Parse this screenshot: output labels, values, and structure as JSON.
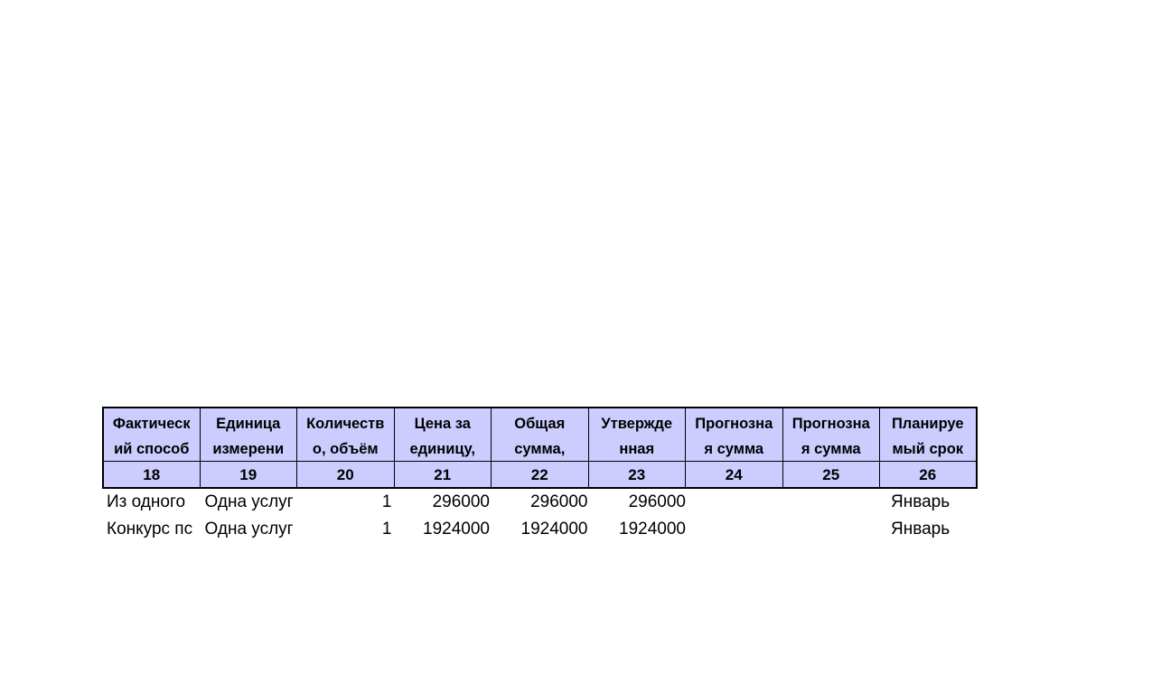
{
  "headers": [
    [
      "Фактическ",
      "ий способ"
    ],
    [
      "Единица",
      "измерени"
    ],
    [
      "Количеств",
      "о, объём"
    ],
    [
      "Цена за",
      "единицу,"
    ],
    [
      "Общая",
      "сумма,"
    ],
    [
      "Утвержде",
      "нная"
    ],
    [
      "Прогнозна",
      "я сумма"
    ],
    [
      "Прогнозна",
      "я сумма"
    ],
    [
      "Планируе",
      "мый срок"
    ]
  ],
  "column_numbers": [
    "18",
    "19",
    "20",
    "21",
    "22",
    "23",
    "24",
    "25",
    "26"
  ],
  "rows": [
    [
      "Из одного",
      "Одна услуг",
      "1",
      "296000",
      "296000",
      "296000",
      "",
      "",
      "Январь"
    ],
    [
      "Конкурс пс",
      "Одна услуг",
      "1",
      "1924000",
      "1924000",
      "1924000",
      "",
      "",
      "Январь"
    ]
  ],
  "colors": {
    "header_bg": "#ccccff",
    "border": "#000000"
  }
}
